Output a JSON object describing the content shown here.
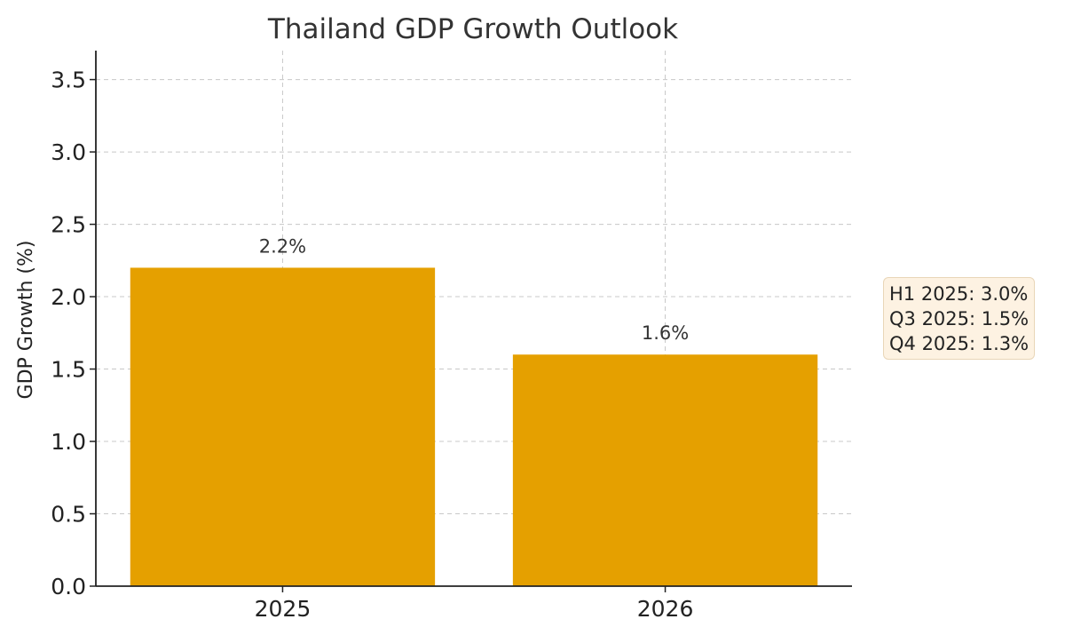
{
  "chart_data": {
    "type": "bar",
    "title": "Thailand GDP Growth Outlook",
    "xlabel": "",
    "ylabel": "GDP Growth (%)",
    "categories": [
      "2025",
      "2026"
    ],
    "values": [
      2.2,
      1.6
    ],
    "data_labels": [
      "2.2%",
      "1.6%"
    ],
    "ylim": [
      0,
      3.7
    ],
    "yticks": [
      "0.0",
      "0.5",
      "1.0",
      "1.5",
      "2.0",
      "2.5",
      "3.0",
      "3.5"
    ],
    "grid": true,
    "bar_color": "#e5a000",
    "annotation": {
      "placement": "right",
      "lines": [
        "H1 2025: 3.0%",
        "Q3 2025: 1.5%",
        "Q4 2025: 1.3%"
      ]
    }
  }
}
